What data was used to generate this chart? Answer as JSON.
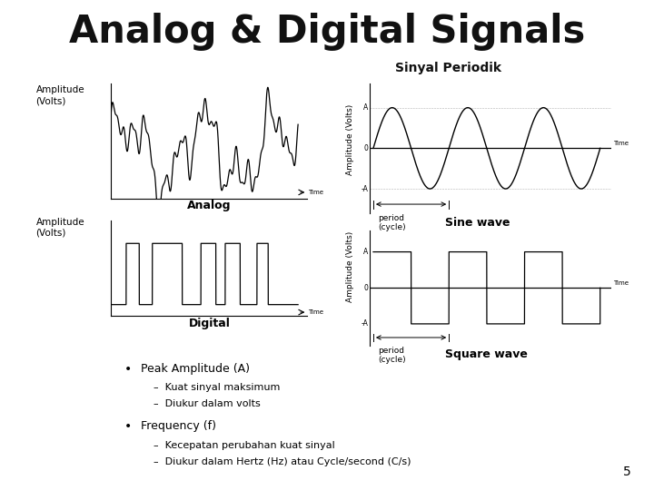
{
  "title": "Analog & Digital Signals",
  "subtitle": "Sinyal Periodik",
  "bg_color": "#ffffff",
  "analog_label": "Analog",
  "digital_label": "Digital",
  "sine_label": "Sine wave",
  "square_label": "Square wave",
  "amp_label": "Amplitude\n(Volts)",
  "period_label": "period\n(cycle)",
  "bullet1": "Peak Amplitude (A)",
  "sub1a": "Kuat sinyal maksimum",
  "sub1b": "Diukur dalam volts",
  "bullet2": "Frequency (f)",
  "sub2a": "Kecepatan perubahan kuat sinyal",
  "sub2b": "Diukur dalam Hertz (Hz) atau Cycle/second (C/s)",
  "page_num": "5",
  "title_fontsize": 30,
  "label_fontsize": 7.5,
  "body_fontsize": 8.5
}
